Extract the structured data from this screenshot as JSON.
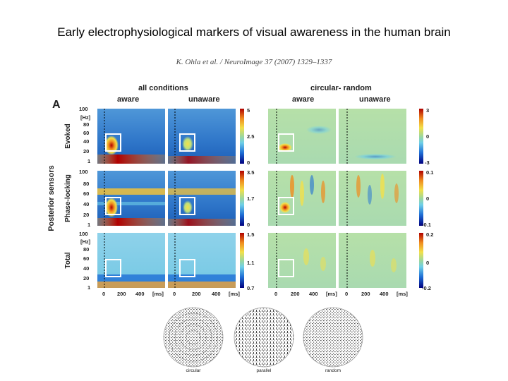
{
  "slide": {
    "title": "Early electrophysiological markers of visual awareness in the human brain",
    "citation": "K. Ohla et al. / NeuroImage 37 (2007) 1329–1337"
  },
  "figure": {
    "panel_letter": "A",
    "group_left": "all conditions",
    "group_right": "circular- random",
    "col_aware": "aware",
    "col_unaware": "unaware",
    "ylabel_outer": "Posterior sensors",
    "row_labels": [
      "Evoked",
      "Phase-locking",
      "Total"
    ],
    "y_ticks": [
      "100",
      "[Hz]",
      "80",
      "60",
      "40",
      "20",
      "1"
    ],
    "x_ticks": [
      "0",
      "200",
      "400",
      "[ms]"
    ],
    "colorbars_left": [
      {
        "max": "5",
        "mid": "2.5",
        "min": "0"
      },
      {
        "max": "3.5",
        "mid": "1.7",
        "min": "0"
      },
      {
        "max": "1.5",
        "mid": "1.1",
        "min": "0.7"
      }
    ],
    "colorbars_right": [
      {
        "max": "3",
        "mid": "0",
        "min": "-3"
      },
      {
        "max": "0.1",
        "mid": "0",
        "min": "-0.1"
      },
      {
        "max": "0.2",
        "mid": "0",
        "min": "-0.2"
      }
    ]
  },
  "stimuli": {
    "captions": [
      "circular",
      "parallel",
      "random"
    ]
  },
  "colors": {
    "jet_dark_blue": "#00007f",
    "jet_blue": "#1f6fd6",
    "jet_cyan": "#6fcfe8",
    "jet_green": "#9fd89a",
    "jet_yellow": "#f2e04a",
    "jet_orange": "#f08c1e",
    "jet_red": "#b00000"
  }
}
